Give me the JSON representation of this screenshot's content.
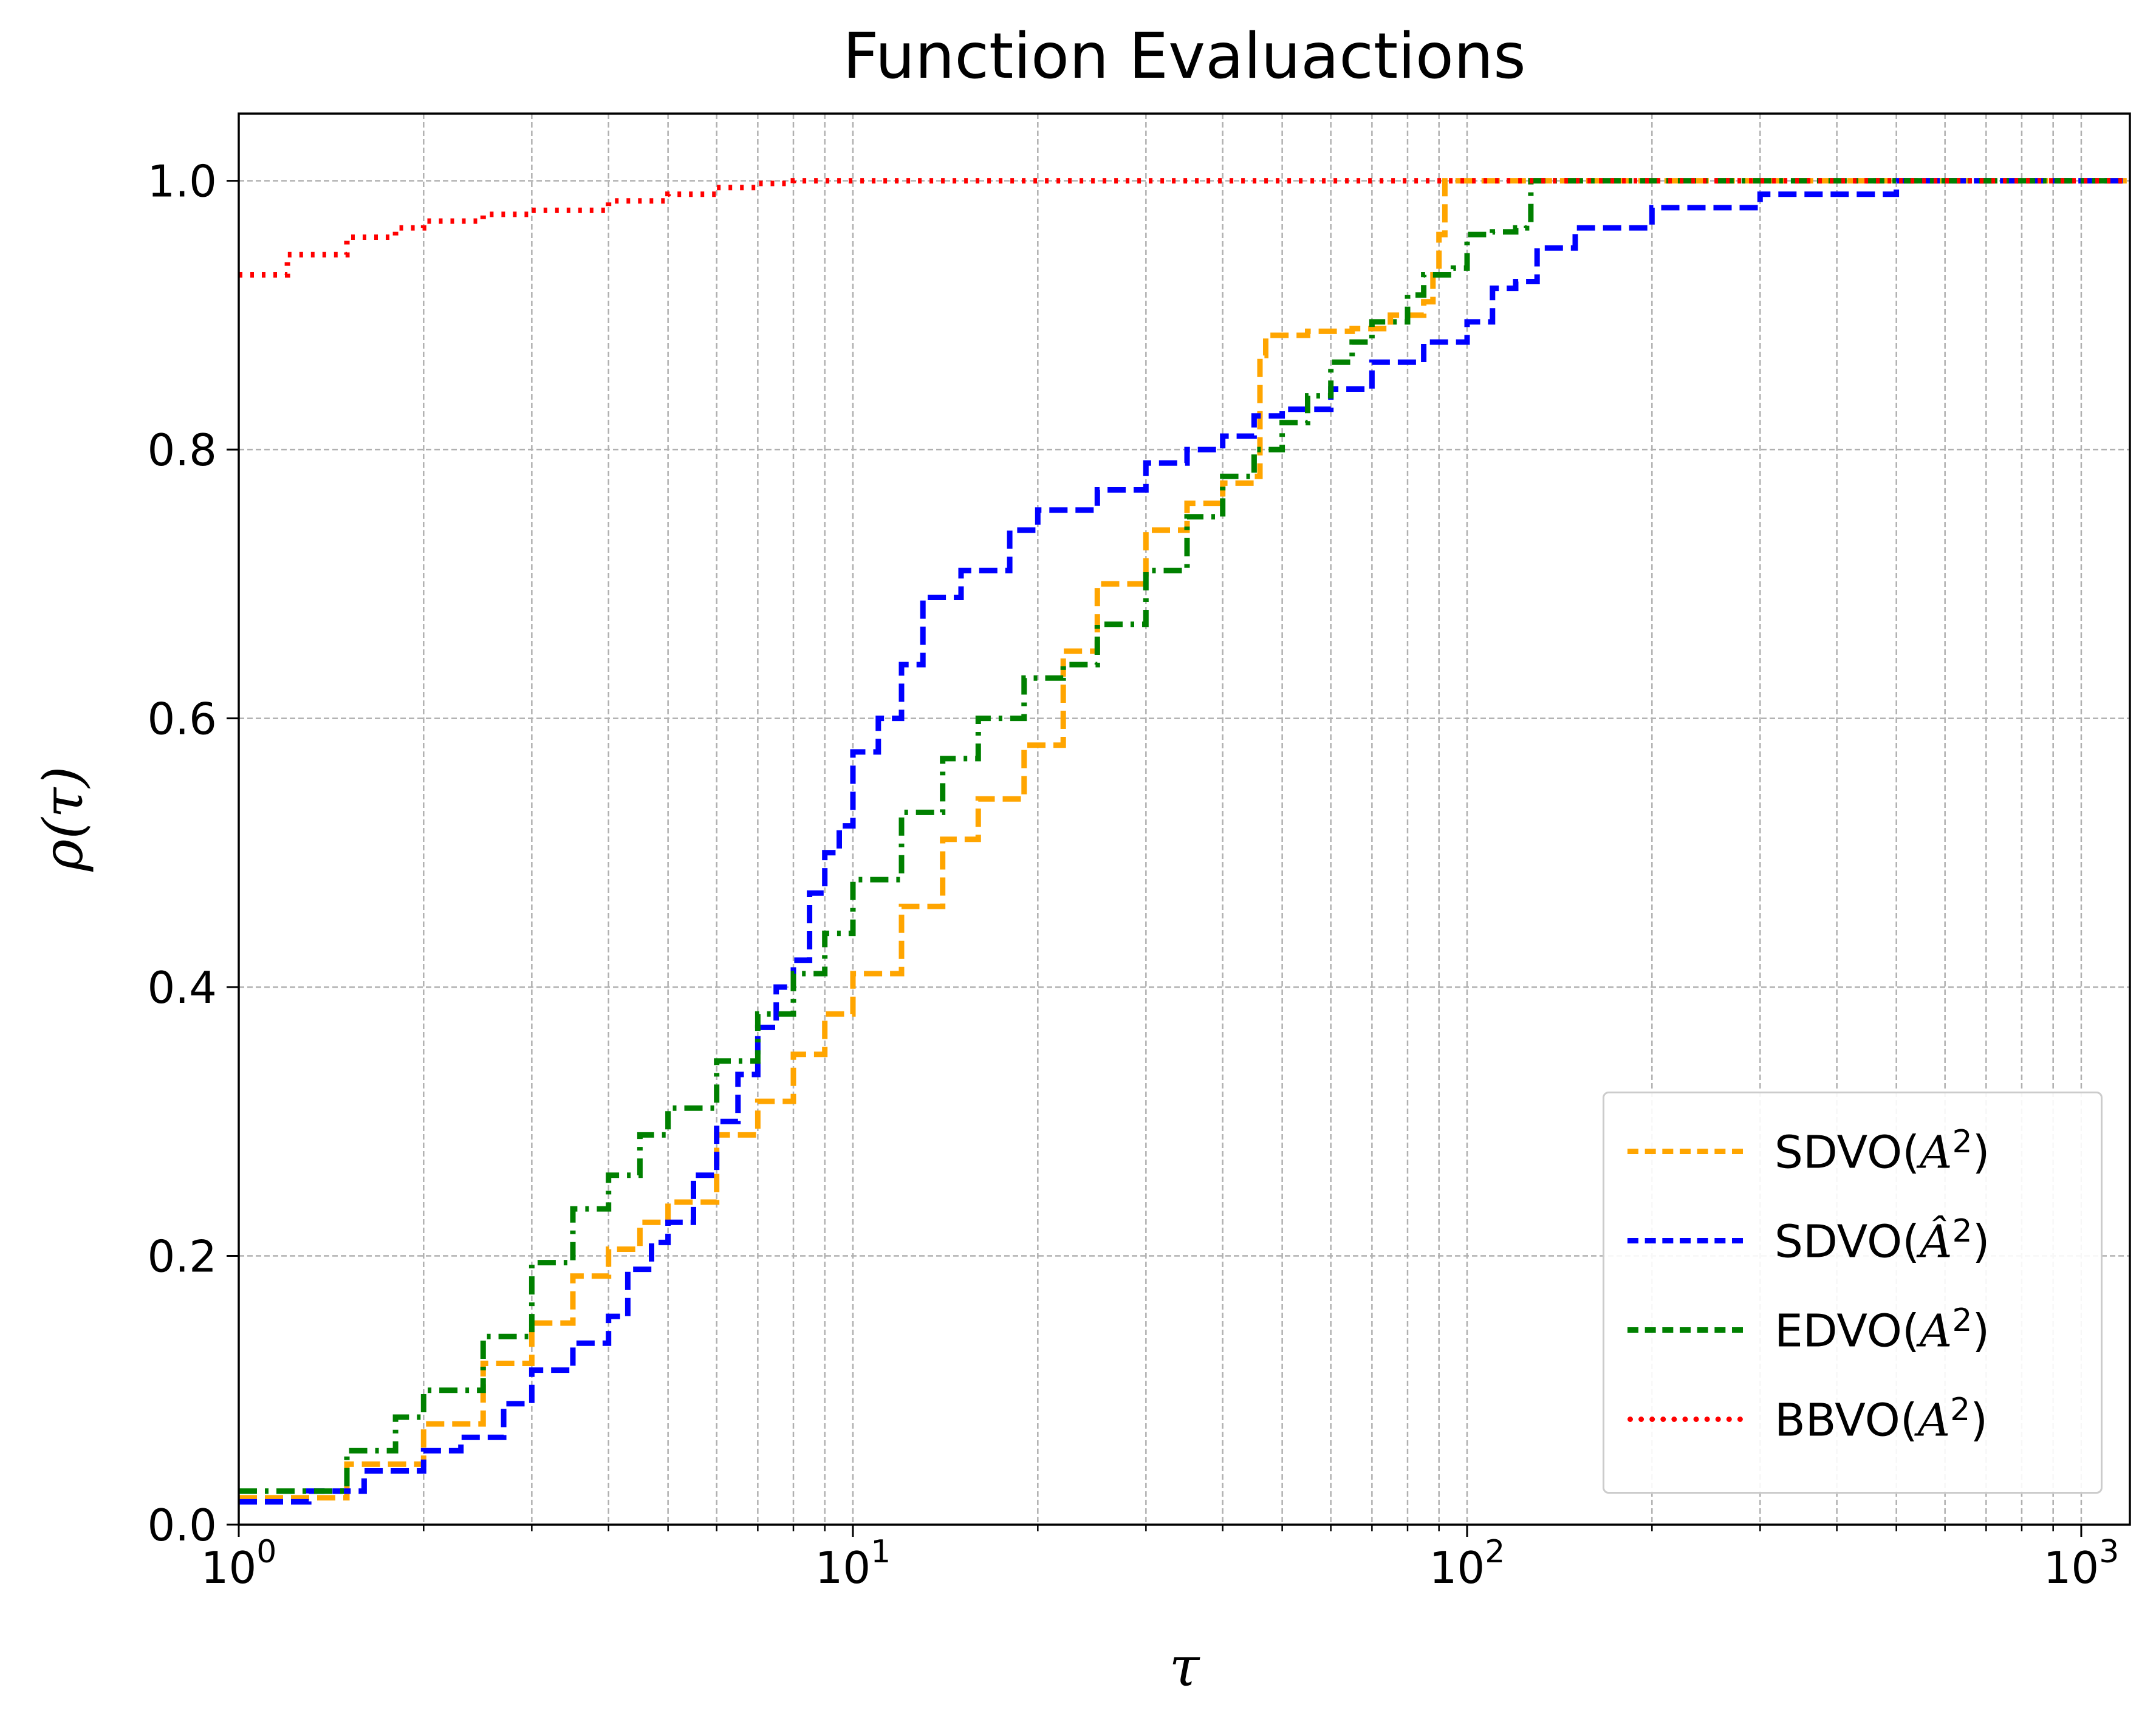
{
  "chart_data": {
    "type": "line",
    "title": "Function Evaluactions",
    "xlabel": "τ",
    "ylabel": "ρ(τ)",
    "xscale": "log",
    "xlim": [
      1,
      1200
    ],
    "ylim": [
      0,
      1.05
    ],
    "xticks": [
      {
        "value": 1,
        "base": "10",
        "exp": "0"
      },
      {
        "value": 10,
        "base": "10",
        "exp": "1"
      },
      {
        "value": 100,
        "base": "10",
        "exp": "2"
      },
      {
        "value": 1000,
        "base": "10",
        "exp": "3"
      }
    ],
    "yticks": [
      {
        "value": 0.0,
        "label": "0.0"
      },
      {
        "value": 0.2,
        "label": "0.2"
      },
      {
        "value": 0.4,
        "label": "0.4"
      },
      {
        "value": 0.6,
        "label": "0.6"
      },
      {
        "value": 0.8,
        "label": "0.8"
      },
      {
        "value": 1.0,
        "label": "1.0"
      }
    ],
    "grid": true,
    "legend_position": "lower-right",
    "series": [
      {
        "name": "SDVO(A^2)",
        "label_prefix": "SDVO(",
        "label_var": "A",
        "label_hat": false,
        "label_sup": "2",
        "label_suffix": ")",
        "color": "#ffa500",
        "style": "dashed",
        "x": [
          1,
          1.5,
          2,
          2.5,
          3,
          3.5,
          4,
          4.5,
          5,
          6,
          7,
          8,
          9,
          10,
          12,
          14,
          16,
          19,
          22,
          25,
          30,
          35,
          40,
          45,
          46,
          47,
          55,
          65,
          75,
          85,
          88,
          90,
          92,
          95,
          100,
          120,
          200,
          500,
          1200
        ],
        "y": [
          0.02,
          0.045,
          0.075,
          0.12,
          0.15,
          0.185,
          0.205,
          0.225,
          0.24,
          0.29,
          0.315,
          0.35,
          0.38,
          0.41,
          0.46,
          0.51,
          0.54,
          0.58,
          0.65,
          0.7,
          0.74,
          0.76,
          0.775,
          0.78,
          0.87,
          0.885,
          0.888,
          0.89,
          0.9,
          0.91,
          0.93,
          0.96,
          1.0,
          1.0,
          1.0,
          1.0,
          1.0,
          1.0,
          1.0
        ]
      },
      {
        "name": "SDVO(Â^2)",
        "label_prefix": "SDVO(",
        "label_var": "A",
        "label_hat": true,
        "label_sup": "2",
        "label_suffix": ")",
        "color": "#0000ff",
        "style": "dashed",
        "x": [
          1,
          1.3,
          1.6,
          2,
          2.3,
          2.7,
          3,
          3.5,
          4,
          4.3,
          4.7,
          5,
          5.5,
          6,
          6.5,
          7,
          7.5,
          8,
          8.5,
          9,
          9.5,
          10,
          11,
          12,
          13,
          15,
          18,
          20,
          25,
          30,
          35,
          40,
          45,
          50,
          60,
          70,
          85,
          100,
          110,
          120,
          130,
          150,
          200,
          300,
          500,
          1200
        ],
        "y": [
          0.017,
          0.025,
          0.04,
          0.055,
          0.065,
          0.09,
          0.115,
          0.135,
          0.155,
          0.19,
          0.21,
          0.225,
          0.26,
          0.3,
          0.335,
          0.37,
          0.4,
          0.42,
          0.47,
          0.5,
          0.52,
          0.575,
          0.6,
          0.64,
          0.69,
          0.71,
          0.74,
          0.755,
          0.77,
          0.79,
          0.8,
          0.81,
          0.825,
          0.83,
          0.845,
          0.865,
          0.88,
          0.895,
          0.92,
          0.925,
          0.95,
          0.965,
          0.98,
          0.99,
          1.0,
          1.0
        ]
      },
      {
        "name": "EDVO(A^2)",
        "label_prefix": "EDVO(",
        "label_var": "A",
        "label_hat": false,
        "label_sup": "2",
        "label_suffix": ")",
        "color": "#008000",
        "style": "dashdot",
        "x": [
          1,
          1.5,
          1.8,
          2,
          2.5,
          3,
          3.5,
          4,
          4.5,
          5,
          6,
          7,
          8,
          9,
          10,
          12,
          14,
          16,
          19,
          22,
          25,
          30,
          35,
          40,
          45,
          50,
          55,
          60,
          65,
          70,
          80,
          85,
          95,
          100,
          110,
          120,
          125,
          127,
          150,
          200,
          500,
          1200
        ],
        "y": [
          0.025,
          0.055,
          0.08,
          0.1,
          0.14,
          0.195,
          0.235,
          0.26,
          0.29,
          0.31,
          0.345,
          0.38,
          0.41,
          0.44,
          0.48,
          0.53,
          0.57,
          0.6,
          0.63,
          0.64,
          0.67,
          0.71,
          0.75,
          0.78,
          0.8,
          0.82,
          0.84,
          0.865,
          0.88,
          0.895,
          0.915,
          0.93,
          0.935,
          0.96,
          0.962,
          0.965,
          0.967,
          1.0,
          1.0,
          1.0,
          1.0,
          1.0
        ]
      },
      {
        "name": "BBVO(A^2)",
        "label_prefix": "BBVO(",
        "label_var": "A",
        "label_hat": false,
        "label_sup": "2",
        "label_suffix": ")",
        "color": "#ff0000",
        "style": "dotted",
        "x": [
          1,
          1.2,
          1.5,
          1.8,
          2,
          2.5,
          3,
          4,
          5,
          6,
          7,
          8,
          10,
          20,
          100,
          1200
        ],
        "y": [
          0.93,
          0.945,
          0.958,
          0.965,
          0.97,
          0.975,
          0.978,
          0.985,
          0.99,
          0.995,
          0.998,
          1.0,
          1.0,
          1.0,
          1.0,
          1.0
        ]
      }
    ]
  }
}
